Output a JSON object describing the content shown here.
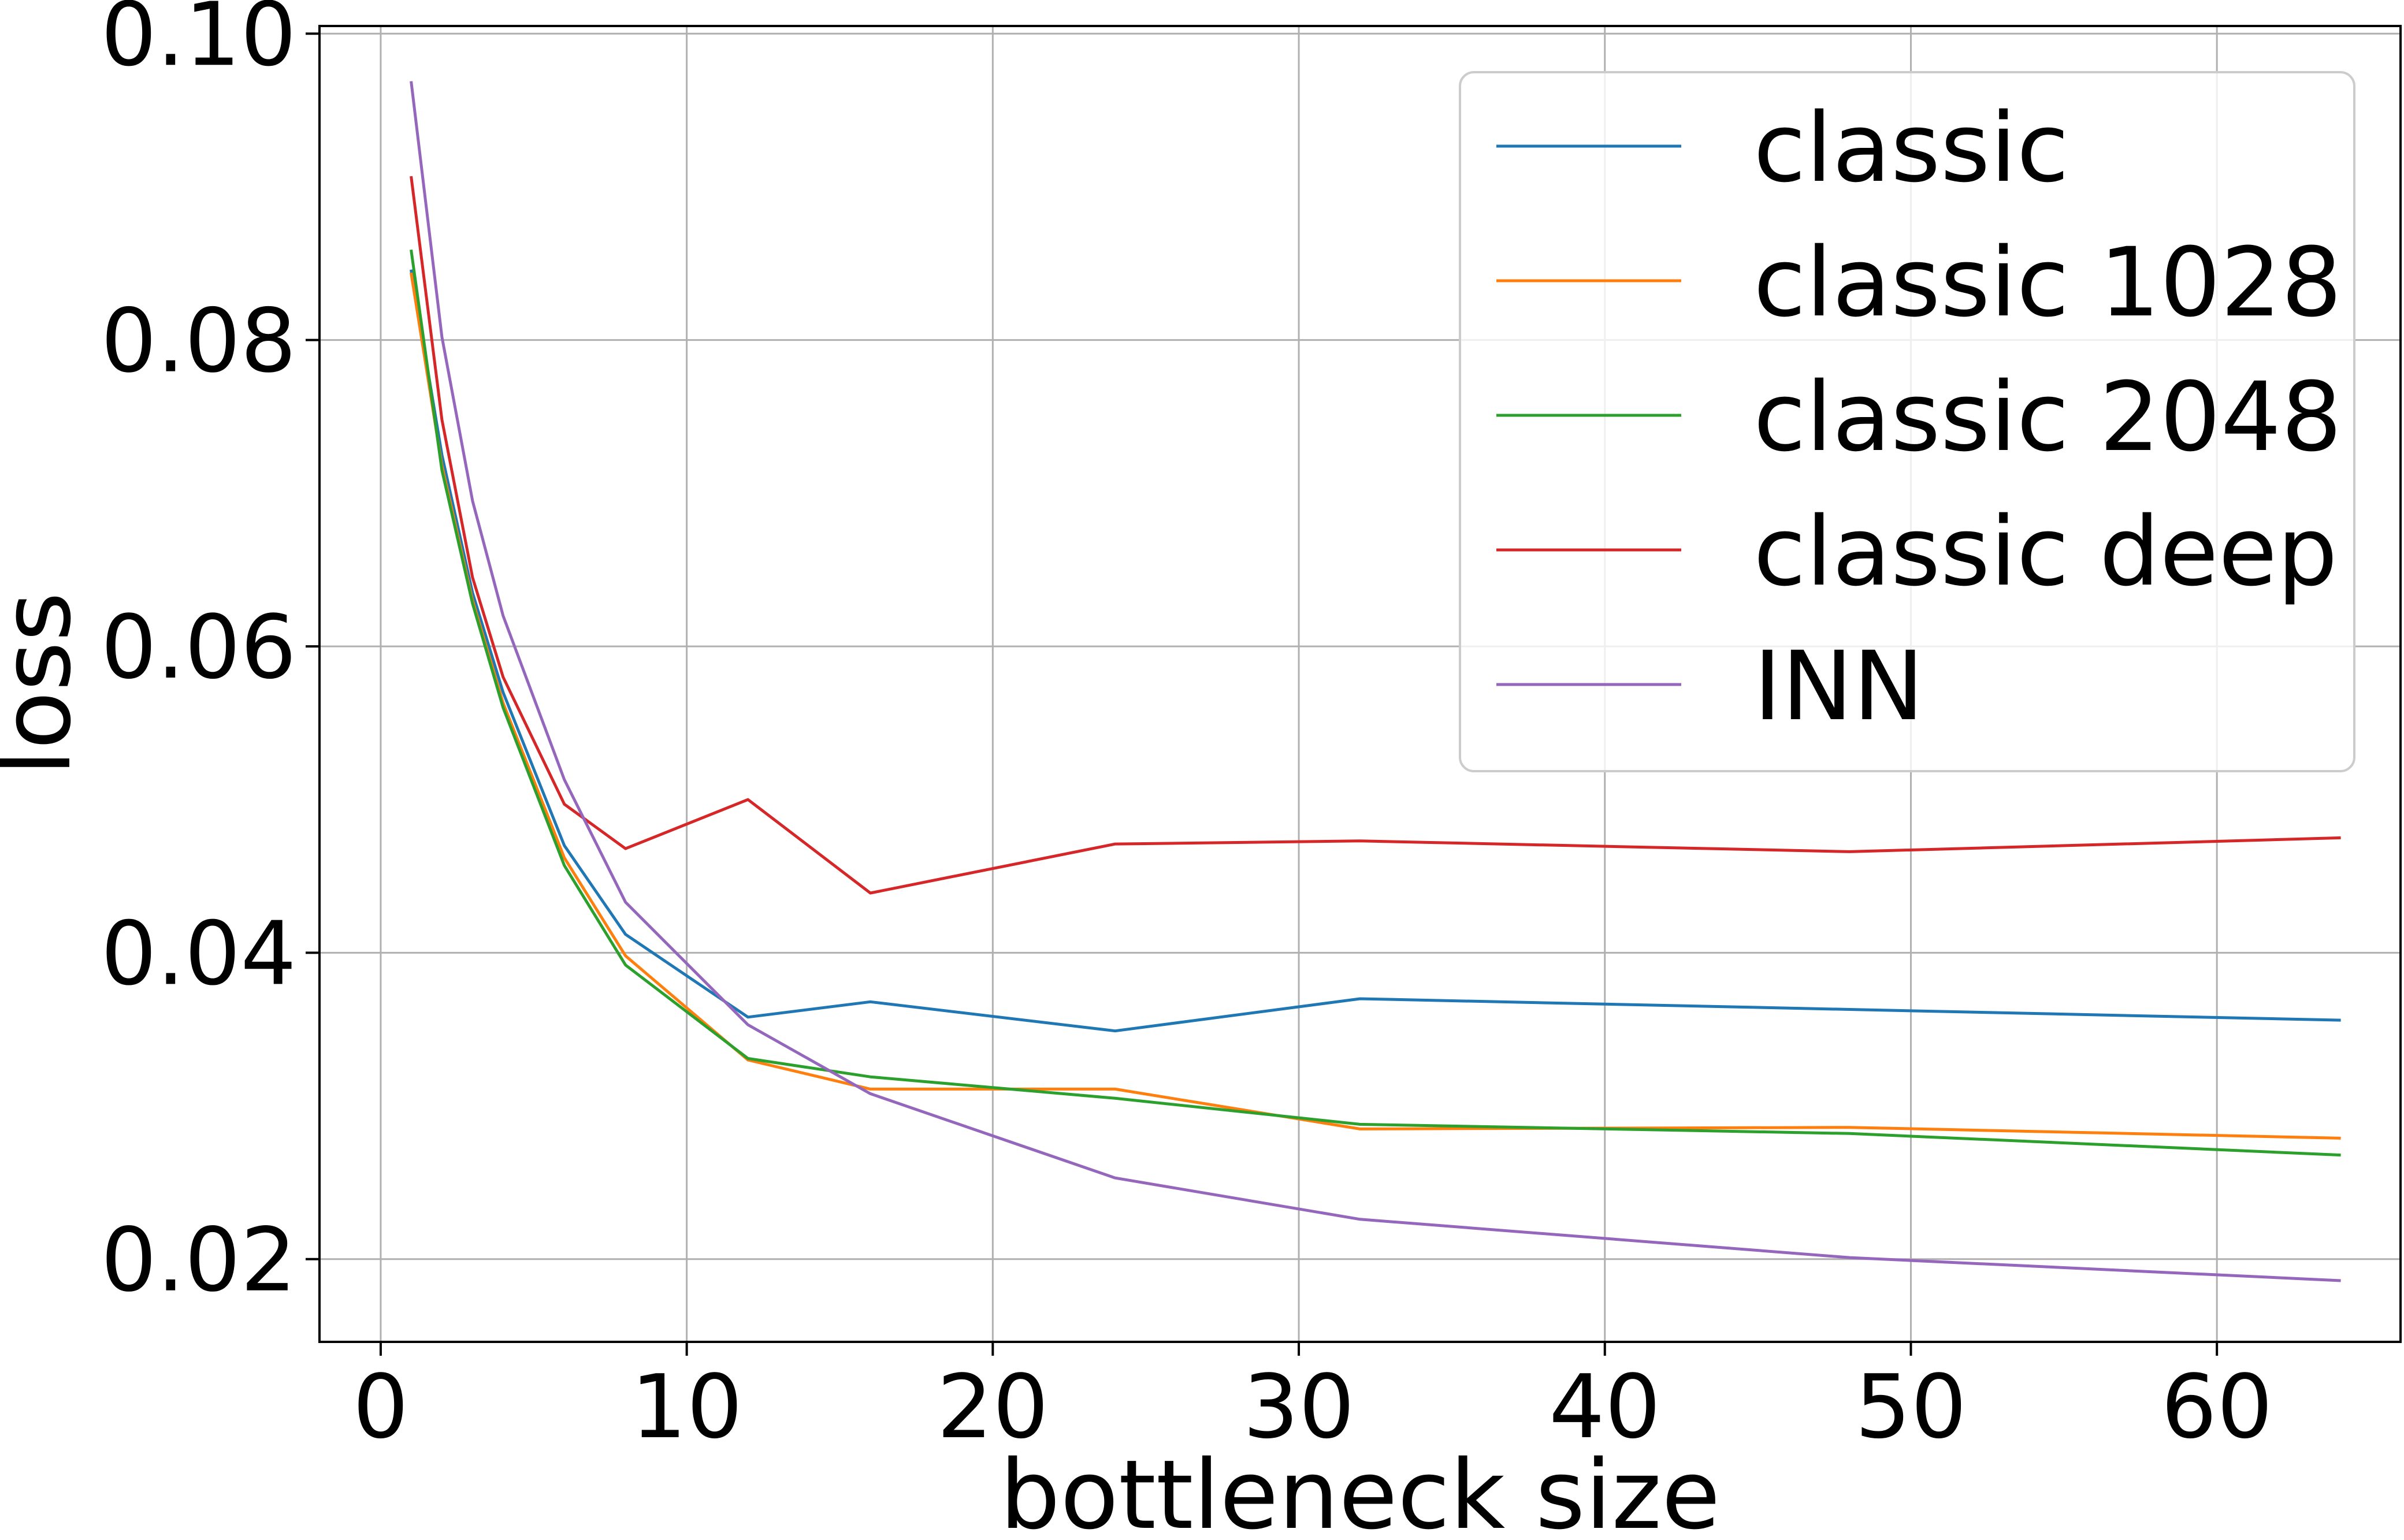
{
  "chart_data": {
    "type": "line",
    "xlabel": "bottleneck size",
    "ylabel": "loss",
    "xlim": [
      -2,
      66
    ],
    "ylim": [
      0.0146,
      0.1005
    ],
    "xticks": [
      0,
      10,
      20,
      30,
      40,
      50,
      60
    ],
    "yticks": [
      0.02,
      0.04,
      0.06,
      0.08,
      0.1
    ],
    "xtick_labels": [
      "0",
      "10",
      "20",
      "30",
      "40",
      "50",
      "60"
    ],
    "ytick_labels": [
      "0.02",
      "0.04",
      "0.06",
      "0.08",
      "0.10"
    ],
    "grid": true,
    "legend_position": "top-right",
    "x": [
      1,
      2,
      3,
      4,
      6,
      8,
      12,
      16,
      24,
      32,
      48,
      64
    ],
    "series": [
      {
        "name": "classic",
        "color": "#1f77b4",
        "values": [
          0.0845,
          0.0725,
          0.0635,
          0.057,
          0.047,
          0.0412,
          0.0358,
          0.0368,
          0.0349,
          0.037,
          0.0363,
          0.0356
        ]
      },
      {
        "name": "classic 1028",
        "color": "#ff7f0e",
        "values": [
          0.0843,
          0.0718,
          0.063,
          0.0563,
          0.0462,
          0.0398,
          0.033,
          0.0311,
          0.0311,
          0.0285,
          0.0286,
          0.0279
        ]
      },
      {
        "name": "classic 2048",
        "color": "#2ca02c",
        "values": [
          0.0858,
          0.0715,
          0.0628,
          0.056,
          0.0457,
          0.0392,
          0.0331,
          0.0319,
          0.0305,
          0.0288,
          0.0282,
          0.0268
        ]
      },
      {
        "name": "classic deep",
        "color": "#d62728",
        "values": [
          0.0906,
          0.0748,
          0.0645,
          0.058,
          0.0497,
          0.0468,
          0.05,
          0.0439,
          0.0471,
          0.0473,
          0.0466,
          0.0475
        ]
      },
      {
        "name": "INN",
        "color": "#9467bd",
        "values": [
          0.0968,
          0.0802,
          0.0695,
          0.062,
          0.0513,
          0.0433,
          0.0353,
          0.0308,
          0.0253,
          0.0226,
          0.0201,
          0.0186
        ]
      }
    ]
  }
}
